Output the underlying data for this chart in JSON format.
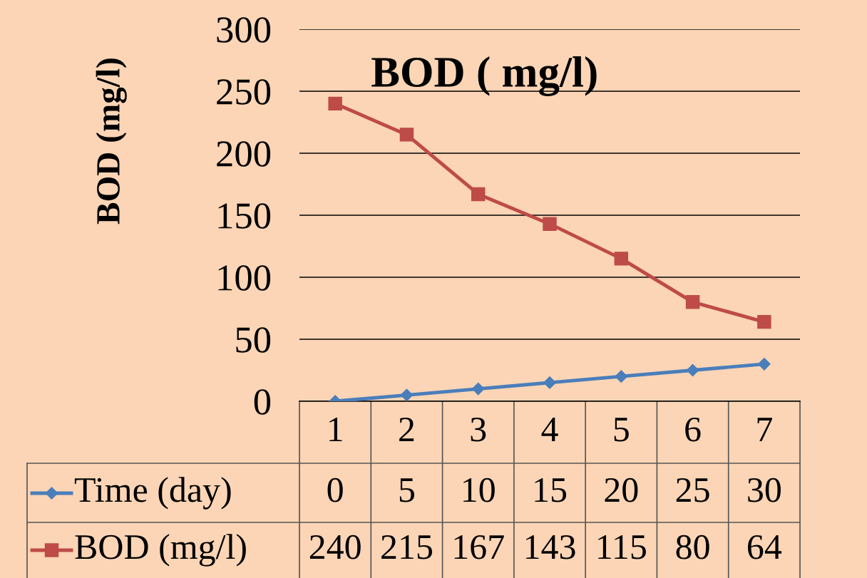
{
  "chart_data": {
    "type": "line",
    "title": "BOD ( mg/l)",
    "ylabel": "BOD (mg/l)",
    "categories": [
      "1",
      "2",
      "3",
      "4",
      "5",
      "6",
      "7"
    ],
    "series": [
      {
        "name": "Time (day)",
        "color": "#4a7ebb",
        "marker": "diamond",
        "values": [
          0,
          5,
          10,
          15,
          20,
          25,
          30
        ]
      },
      {
        "name": "BOD (mg/l)",
        "color": "#be4b48",
        "marker": "square",
        "values": [
          240,
          215,
          167,
          143,
          115,
          80,
          64
        ]
      }
    ],
    "ylim": [
      0,
      300
    ],
    "yticks": [
      0,
      50,
      100,
      150,
      200,
      250,
      300
    ],
    "grid": "y",
    "legend": "bottom",
    "data_labels": true,
    "line_style": "solid"
  }
}
